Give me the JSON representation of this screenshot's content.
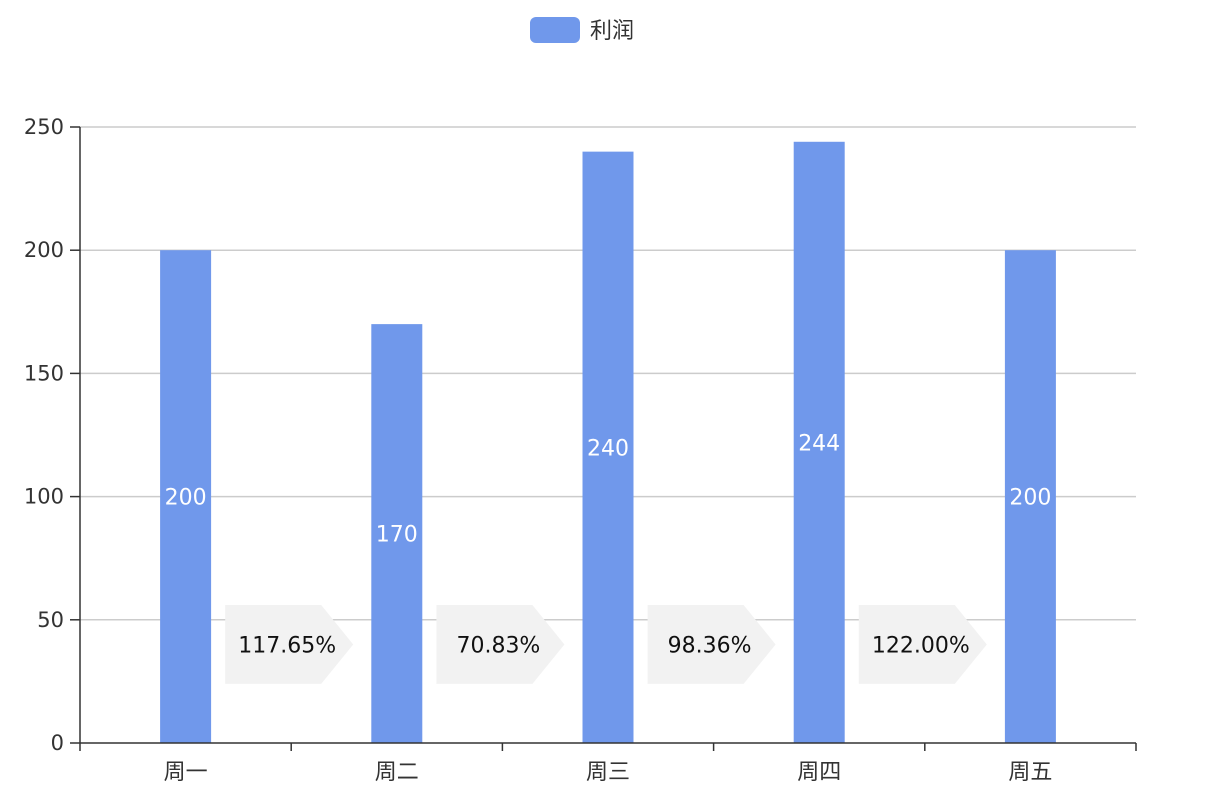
{
  "chart_data": {
    "type": "bar",
    "categories": [
      "周一",
      "周二",
      "周三",
      "周四",
      "周五"
    ],
    "series": [
      {
        "name": "利润",
        "values": [
          200,
          170,
          240,
          244,
          200
        ]
      }
    ],
    "ratio_labels": [
      "117.65%",
      "70.83%",
      "98.36%",
      "122.00%"
    ],
    "y_ticks": [
      0,
      50,
      100,
      150,
      200,
      250
    ],
    "ylim": [
      0,
      250
    ],
    "grid": true,
    "legend": "top-center",
    "colors": {
      "bar": "#7098eb",
      "grid": "#cccccc",
      "axis": "#333333",
      "ratio_bg": "#f2f2f2"
    }
  }
}
